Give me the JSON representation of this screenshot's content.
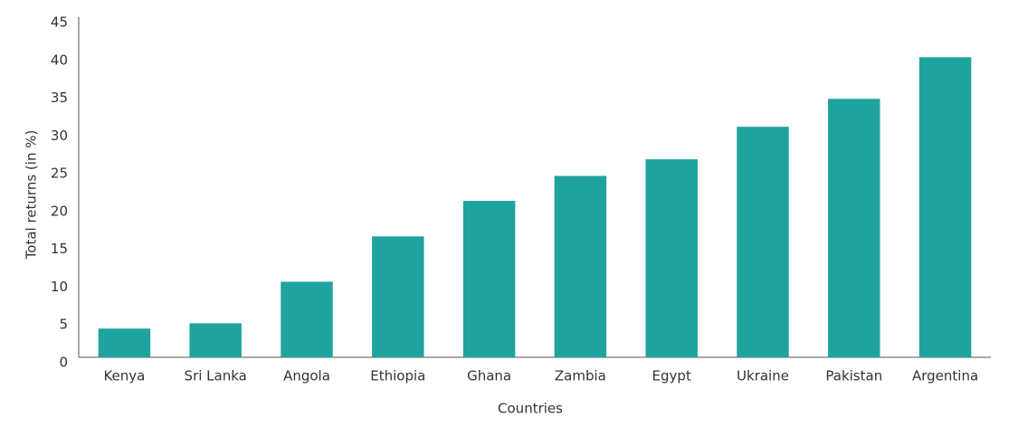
{
  "chart_data": {
    "type": "bar",
    "x_label": "Countries",
    "y_label": "Total returns (in %)",
    "categories": [
      "Kenya",
      "Sri Lanka",
      "Angola",
      "Ethiopia",
      "Ghana",
      "Zambia",
      "Egypt",
      "Ukraine",
      "Pakistan",
      "Argentina"
    ],
    "values": [
      3.8,
      4.5,
      10.0,
      16.0,
      20.7,
      24.0,
      26.2,
      30.5,
      34.2,
      39.7
    ],
    "color": "#1fa39e",
    "ylim": [
      0,
      45
    ],
    "yticks": [
      0,
      5,
      10,
      15,
      20,
      25,
      30,
      35,
      40,
      45
    ],
    "grid": false
  }
}
